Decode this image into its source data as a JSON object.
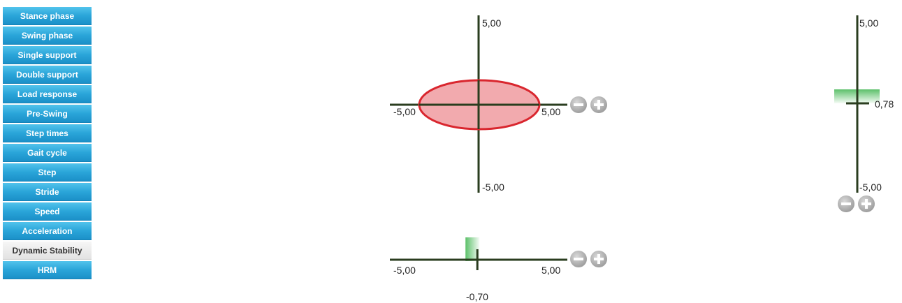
{
  "sidebar": {
    "items": [
      {
        "label": "Stance phase",
        "active": false
      },
      {
        "label": "Swing phase",
        "active": false
      },
      {
        "label": "Single support",
        "active": false
      },
      {
        "label": "Double support",
        "active": false
      },
      {
        "label": "Load response",
        "active": false
      },
      {
        "label": "Pre-Swing",
        "active": false
      },
      {
        "label": "Step times",
        "active": false
      },
      {
        "label": "Gait cycle",
        "active": false
      },
      {
        "label": "Step",
        "active": false
      },
      {
        "label": "Stride",
        "active": false
      },
      {
        "label": "Speed",
        "active": false
      },
      {
        "label": "Acceleration",
        "active": false
      },
      {
        "label": "Dynamic Stability",
        "active": true
      },
      {
        "label": "HRM",
        "active": false
      }
    ]
  },
  "colors": {
    "axis": "#2a3d1f",
    "ellipse_fill": "#f2aaae",
    "ellipse_stroke": "#d9262e",
    "marker_green": "#3fb54f",
    "button_grey": "#b5b5b5"
  },
  "ellipse_plot": {
    "x_min": "-5,00",
    "x_max": "5,00",
    "y_max": "5,00",
    "y_min": "-5,00",
    "buttons": [
      "minus-icon",
      "plus-icon"
    ]
  },
  "horizontal_gauge": {
    "min": "-5,00",
    "max": "5,00",
    "value": "-0,70",
    "value_num": -0.7,
    "buttons": [
      "minus-icon",
      "plus-icon"
    ]
  },
  "vertical_gauge": {
    "max": "5,00",
    "min": "-5,00",
    "value": "0,78",
    "value_num": 0.78,
    "buttons": [
      "minus-icon",
      "plus-icon"
    ]
  }
}
